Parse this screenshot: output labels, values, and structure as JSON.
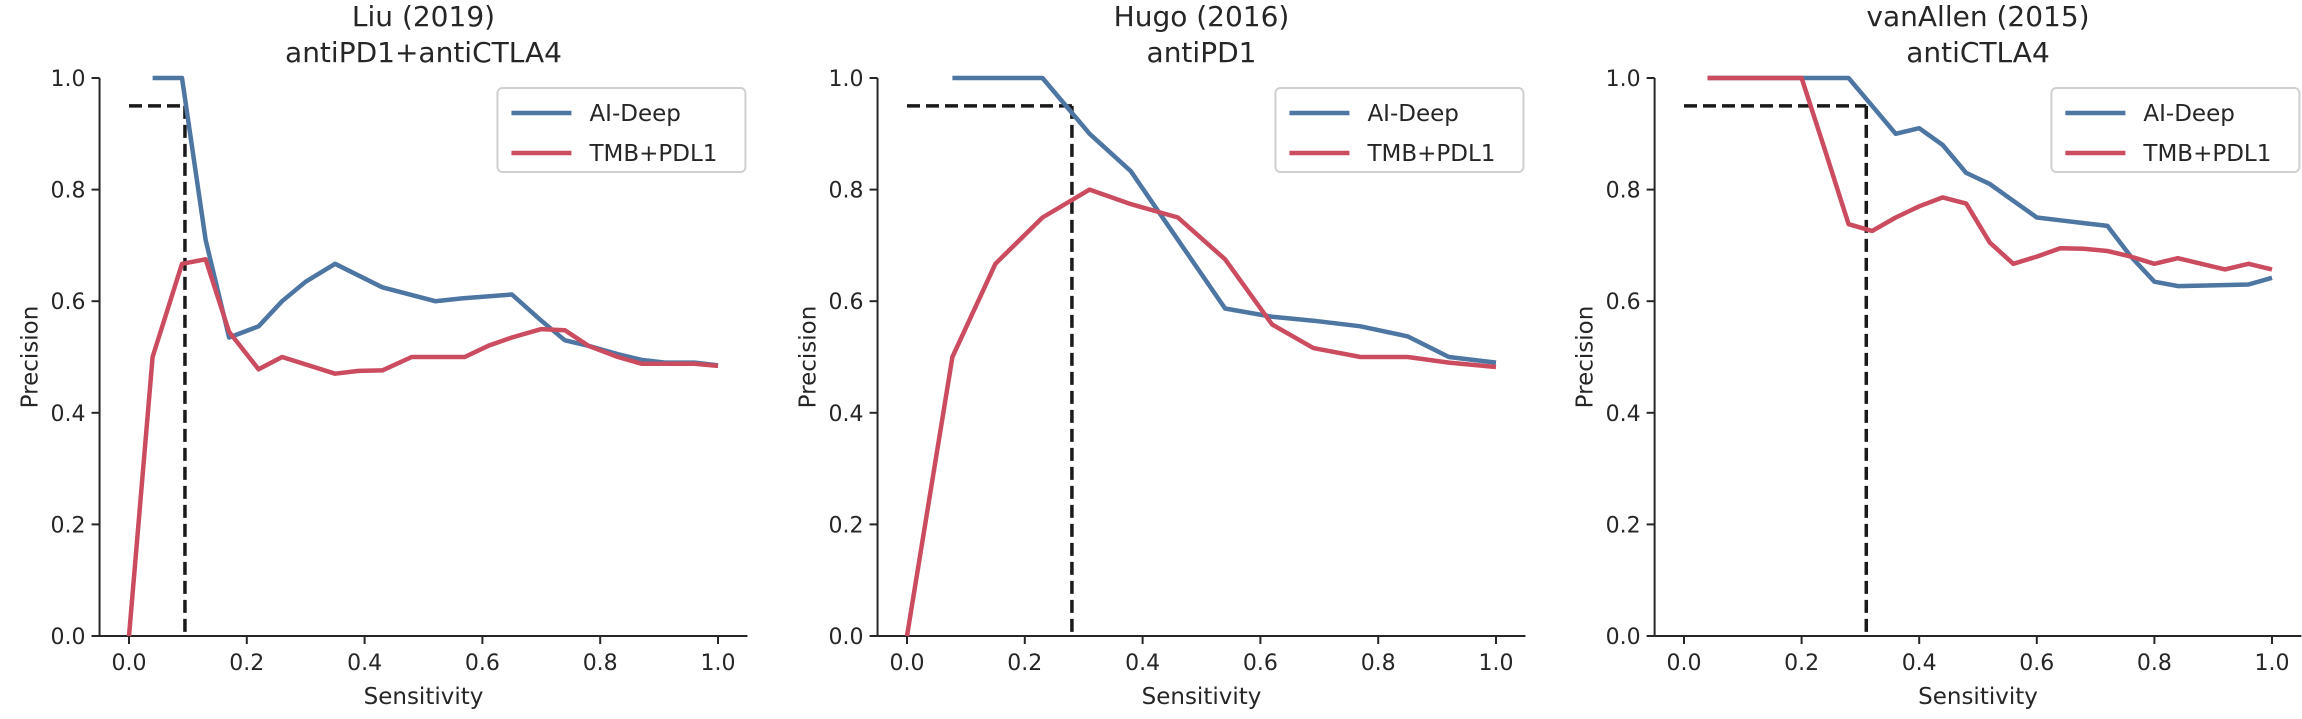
{
  "colors": {
    "ai_deep": "#4e76a3",
    "tmb_pdl1": "#cc4c5f",
    "threshold": "#1a1a1a"
  },
  "chart_data": [
    {
      "type": "line",
      "title": [
        "Liu (2019)",
        "antiPD1+antiCTLA4"
      ],
      "xlabel": "Sensitivity",
      "ylabel": "Precision",
      "xlim": [
        -0.05,
        1.05
      ],
      "ylim": [
        0,
        1
      ],
      "xticks": [
        "0.0",
        "0.2",
        "0.4",
        "0.6",
        "0.8",
        "1.0"
      ],
      "yticks": [
        "0.0",
        "0.2",
        "0.4",
        "0.6",
        "0.8",
        "1.0"
      ],
      "legend": "top-right",
      "threshold": {
        "x": 0.095,
        "y": 0.95
      },
      "series": [
        {
          "name": "AI-Deep",
          "color": "ai_deep",
          "points": [
            [
              0.04,
              1.0
            ],
            [
              0.09,
              1.0
            ],
            [
              0.13,
              0.71
            ],
            [
              0.17,
              0.535
            ],
            [
              0.22,
              0.555
            ],
            [
              0.26,
              0.6
            ],
            [
              0.3,
              0.635
            ],
            [
              0.35,
              0.667
            ],
            [
              0.43,
              0.625
            ],
            [
              0.52,
              0.6
            ],
            [
              0.565,
              0.605
            ],
            [
              0.65,
              0.612
            ],
            [
              0.7,
              0.565
            ],
            [
              0.74,
              0.53
            ],
            [
              0.78,
              0.52
            ],
            [
              0.83,
              0.505
            ],
            [
              0.87,
              0.495
            ],
            [
              0.91,
              0.49
            ],
            [
              0.96,
              0.49
            ],
            [
              1.0,
              0.485
            ]
          ]
        },
        {
          "name": "TMB+PDL1",
          "color": "tmb_pdl1",
          "points": [
            [
              0.0,
              0.0
            ],
            [
              0.04,
              0.5
            ],
            [
              0.09,
              0.667
            ],
            [
              0.13,
              0.675
            ],
            [
              0.17,
              0.545
            ],
            [
              0.22,
              0.478
            ],
            [
              0.26,
              0.5
            ],
            [
              0.35,
              0.47
            ],
            [
              0.39,
              0.475
            ],
            [
              0.43,
              0.476
            ],
            [
              0.48,
              0.5
            ],
            [
              0.52,
              0.5
            ],
            [
              0.57,
              0.5
            ],
            [
              0.61,
              0.52
            ],
            [
              0.65,
              0.535
            ],
            [
              0.7,
              0.55
            ],
            [
              0.74,
              0.548
            ],
            [
              0.78,
              0.52
            ],
            [
              0.83,
              0.5
            ],
            [
              0.87,
              0.488
            ],
            [
              0.91,
              0.488
            ],
            [
              0.96,
              0.488
            ],
            [
              1.0,
              0.484
            ]
          ]
        }
      ]
    },
    {
      "type": "line",
      "title": [
        "Hugo (2016)",
        "antiPD1"
      ],
      "xlabel": "Sensitivity",
      "ylabel": "Precision",
      "xlim": [
        -0.05,
        1.05
      ],
      "ylim": [
        0,
        1
      ],
      "xticks": [
        "0.0",
        "0.2",
        "0.4",
        "0.6",
        "0.8",
        "1.0"
      ],
      "yticks": [
        "0.0",
        "0.2",
        "0.4",
        "0.6",
        "0.8",
        "1.0"
      ],
      "legend": "top-right",
      "threshold": {
        "x": 0.28,
        "y": 0.95
      },
      "series": [
        {
          "name": "AI-Deep",
          "color": "ai_deep",
          "points": [
            [
              0.077,
              1.0
            ],
            [
              0.23,
              1.0
            ],
            [
              0.31,
              0.9
            ],
            [
              0.38,
              0.833
            ],
            [
              0.46,
              0.71
            ],
            [
              0.54,
              0.587
            ],
            [
              0.62,
              0.572
            ],
            [
              0.69,
              0.565
            ],
            [
              0.77,
              0.555
            ],
            [
              0.85,
              0.537
            ],
            [
              0.92,
              0.5
            ],
            [
              1.0,
              0.49
            ]
          ]
        },
        {
          "name": "TMB+PDL1",
          "color": "tmb_pdl1",
          "points": [
            [
              0.0,
              0.0
            ],
            [
              0.077,
              0.5
            ],
            [
              0.15,
              0.667
            ],
            [
              0.23,
              0.75
            ],
            [
              0.31,
              0.8
            ],
            [
              0.38,
              0.774
            ],
            [
              0.46,
              0.75
            ],
            [
              0.54,
              0.675
            ],
            [
              0.62,
              0.558
            ],
            [
              0.69,
              0.516
            ],
            [
              0.77,
              0.5
            ],
            [
              0.85,
              0.5
            ],
            [
              0.92,
              0.49
            ],
            [
              1.0,
              0.482
            ]
          ]
        }
      ]
    },
    {
      "type": "line",
      "title": [
        "vanAllen (2015)",
        "antiCTLA4"
      ],
      "xlabel": "Sensitivity",
      "ylabel": "Precision",
      "xlim": [
        -0.05,
        1.05
      ],
      "ylim": [
        0,
        1
      ],
      "xticks": [
        "0.0",
        "0.2",
        "0.4",
        "0.6",
        "0.8",
        "1.0"
      ],
      "yticks": [
        "0.0",
        "0.2",
        "0.4",
        "0.6",
        "0.8",
        "1.0"
      ],
      "legend": "top-right",
      "threshold": {
        "x": 0.31,
        "y": 0.95
      },
      "series": [
        {
          "name": "AI-Deep",
          "color": "ai_deep",
          "points": [
            [
              0.04,
              1.0
            ],
            [
              0.28,
              1.0
            ],
            [
              0.32,
              0.95
            ],
            [
              0.36,
              0.9
            ],
            [
              0.4,
              0.91
            ],
            [
              0.44,
              0.88
            ],
            [
              0.48,
              0.83
            ],
            [
              0.52,
              0.81
            ],
            [
              0.56,
              0.78
            ],
            [
              0.6,
              0.75
            ],
            [
              0.64,
              0.745
            ],
            [
              0.68,
              0.74
            ],
            [
              0.72,
              0.735
            ],
            [
              0.76,
              0.68
            ],
            [
              0.8,
              0.635
            ],
            [
              0.84,
              0.627
            ],
            [
              0.88,
              0.628
            ],
            [
              0.96,
              0.63
            ],
            [
              1.0,
              0.642
            ]
          ]
        },
        {
          "name": "TMB+PDL1",
          "color": "tmb_pdl1",
          "points": [
            [
              0.04,
              1.0
            ],
            [
              0.2,
              1.0
            ],
            [
              0.24,
              0.87
            ],
            [
              0.28,
              0.738
            ],
            [
              0.32,
              0.726
            ],
            [
              0.36,
              0.75
            ],
            [
              0.4,
              0.77
            ],
            [
              0.44,
              0.786
            ],
            [
              0.48,
              0.775
            ],
            [
              0.52,
              0.705
            ],
            [
              0.56,
              0.667
            ],
            [
              0.6,
              0.68
            ],
            [
              0.64,
              0.695
            ],
            [
              0.68,
              0.694
            ],
            [
              0.72,
              0.69
            ],
            [
              0.76,
              0.68
            ],
            [
              0.8,
              0.667
            ],
            [
              0.84,
              0.677
            ],
            [
              0.88,
              0.667
            ],
            [
              0.92,
              0.657
            ],
            [
              0.96,
              0.667
            ],
            [
              1.0,
              0.657
            ]
          ]
        }
      ]
    }
  ]
}
